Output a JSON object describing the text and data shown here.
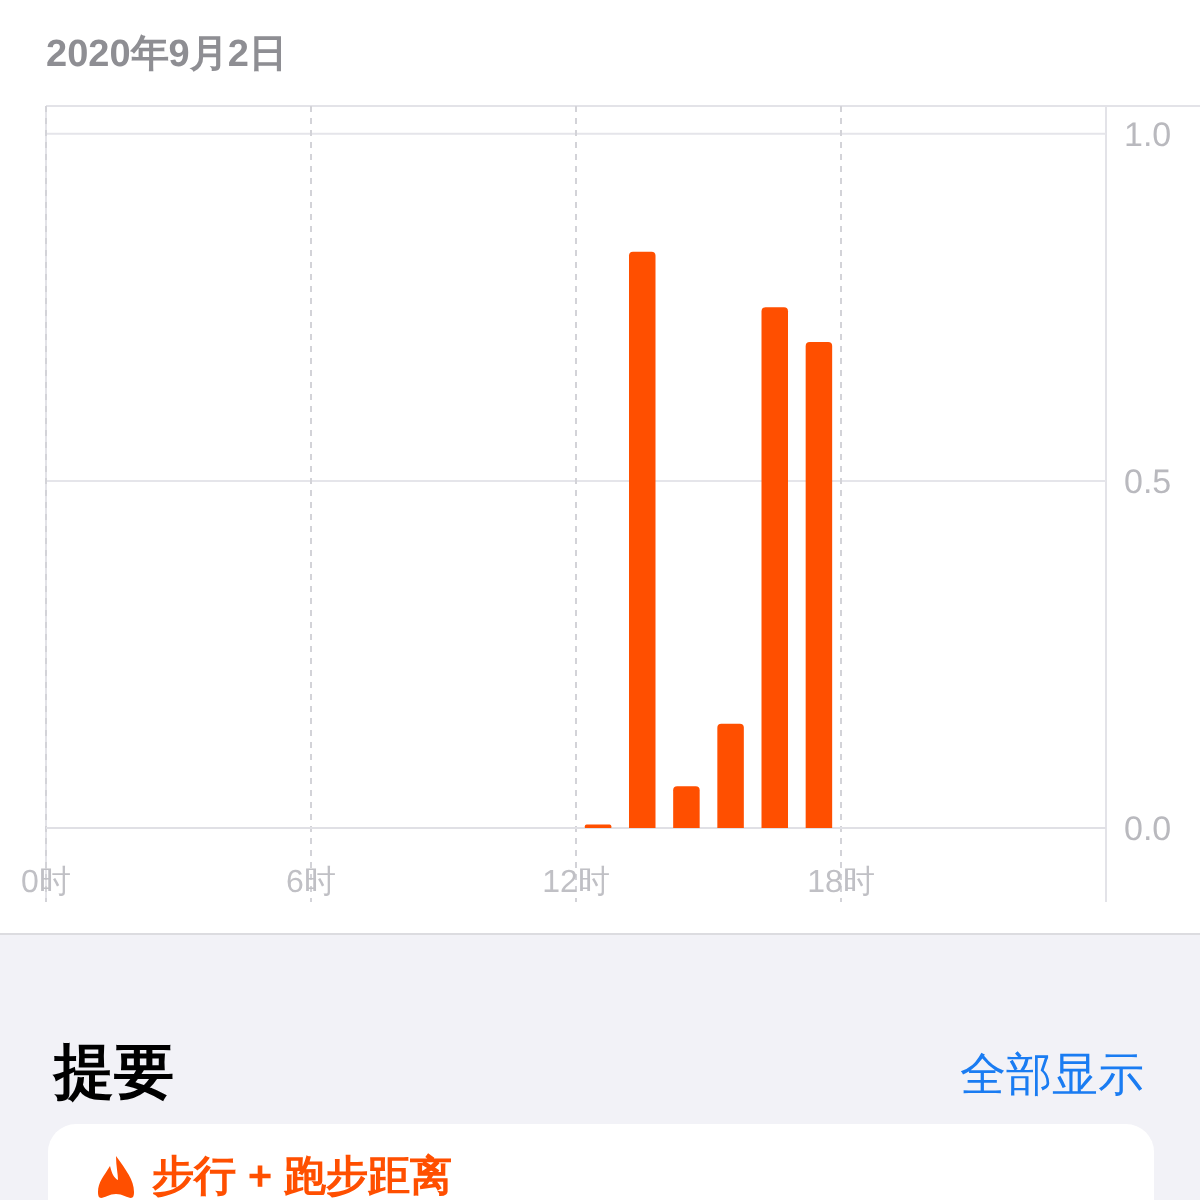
{
  "chart_data": {
    "type": "bar",
    "subtitle": "2020年9月2日",
    "x": [
      12.5,
      13.5,
      14.5,
      15.5,
      16.5,
      17.5
    ],
    "values": [
      0.005,
      0.83,
      0.06,
      0.15,
      0.75,
      0.7
    ],
    "color": "#ff4f00",
    "xlim": [
      0,
      24
    ],
    "xticks": [
      {
        "value": 0,
        "label": "0时"
      },
      {
        "value": 6,
        "label": "6时"
      },
      {
        "value": 12,
        "label": "12时"
      },
      {
        "value": 18,
        "label": "18时"
      }
    ],
    "ylim": [
      0,
      1.04
    ],
    "yticks": [
      {
        "value": 0,
        "label": "0.0"
      },
      {
        "value": 0.5,
        "label": "0.5"
      },
      {
        "value": 1,
        "label": "1.0"
      }
    ],
    "grid": true,
    "annotations": [
      "提要",
      "全部显示",
      "步行 + 跑步距离"
    ]
  }
}
